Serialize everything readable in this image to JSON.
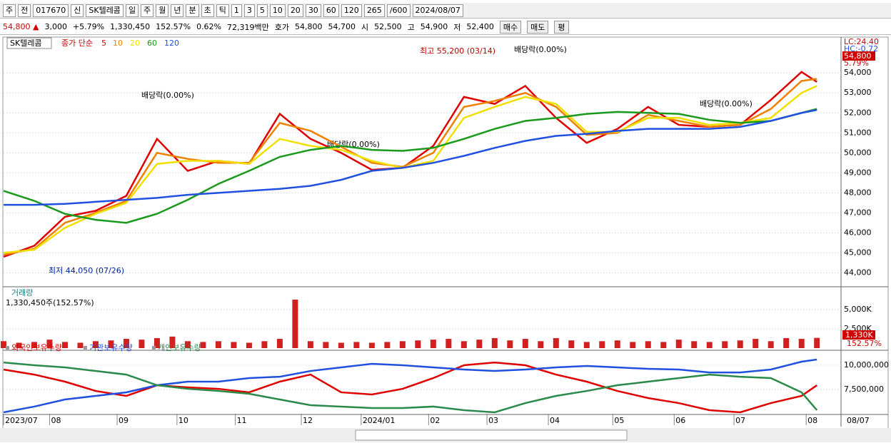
{
  "toolbar": {
    "items": [
      "주",
      "전",
      "017670",
      "신",
      "SK텔레콤",
      "일",
      "주",
      "월",
      "년",
      "분",
      "초",
      "틱",
      "1",
      "3",
      "5",
      "10",
      "20",
      "30",
      "60",
      "120",
      "265",
      "/600",
      "2024/08/07"
    ]
  },
  "info": {
    "items": [
      "54,800 ▲",
      "3,000",
      "+5.79%",
      "1,330,450",
      "152.57%",
      "0.62%",
      "72,319백만",
      "호가",
      "54,800",
      "54,700",
      "시",
      "52,500",
      "고",
      "54,900",
      "저",
      "52,400"
    ],
    "buttons": [
      "매수",
      "매도",
      "평"
    ]
  },
  "chart_data": [
    {
      "type": "line",
      "name": "SK텔레콤",
      "legend_title": "종가 단순",
      "x": [
        0,
        2,
        4,
        6,
        8,
        10,
        12,
        14,
        16,
        18,
        20,
        22,
        24,
        26,
        28,
        30,
        32,
        34,
        36,
        38,
        40,
        42,
        44,
        46,
        48,
        50,
        52,
        53
      ],
      "xlim": [
        0,
        54.2
      ],
      "ylim": [
        43300,
        55650
      ],
      "yticks": [
        {
          "value": 44000,
          "label": "44,000"
        },
        {
          "value": 45000,
          "label": "45,000"
        },
        {
          "value": 46000,
          "label": "46,000"
        },
        {
          "value": 47000,
          "label": "47,000"
        },
        {
          "value": 48000,
          "label": "48,000"
        },
        {
          "value": 49000,
          "label": "49,000"
        },
        {
          "value": 50000,
          "label": "50,000"
        },
        {
          "value": 51000,
          "label": "51,000"
        },
        {
          "value": 52000,
          "label": "52,000"
        },
        {
          "value": 53000,
          "label": "53,000"
        },
        {
          "value": 54000,
          "label": "54,000"
        }
      ],
      "grid": true,
      "series": [
        {
          "name": "5",
          "color": "#e00000",
          "values": [
            44800,
            45350,
            46800,
            47100,
            47850,
            50700,
            49100,
            49600,
            49450,
            51950,
            50700,
            50000,
            49150,
            49250,
            50350,
            52800,
            52450,
            53350,
            51750,
            50500,
            51200,
            52300,
            51400,
            51300,
            51400,
            52650,
            54050,
            53550
          ]
        },
        {
          "name": "10",
          "color": "#f08000",
          "values": [
            44900,
            45200,
            46500,
            47000,
            47600,
            50000,
            49700,
            49500,
            49500,
            51500,
            51100,
            50300,
            49500,
            49300,
            50000,
            52300,
            52600,
            53000,
            52300,
            50900,
            51000,
            51900,
            51600,
            51300,
            51400,
            52200,
            53600,
            53700
          ]
        },
        {
          "name": "20",
          "color": "#f0e000",
          "values": [
            45000,
            45150,
            46250,
            46950,
            47500,
            49450,
            49600,
            49600,
            49450,
            50700,
            50350,
            50150,
            49600,
            49250,
            49600,
            51750,
            52300,
            52800,
            52450,
            51050,
            51050,
            51750,
            51750,
            51400,
            51500,
            51750,
            53000,
            53350
          ]
        },
        {
          "name": "60",
          "color": "#1a9a1a",
          "values": [
            48100,
            47600,
            46950,
            46650,
            46500,
            46950,
            47650,
            48450,
            49100,
            49800,
            50150,
            50350,
            50150,
            50100,
            50250,
            50700,
            51200,
            51600,
            51750,
            51950,
            52050,
            52000,
            51950,
            51650,
            51500,
            51600,
            52000,
            52200
          ]
        },
        {
          "name": "120",
          "color": "#2050e0",
          "values": [
            47400,
            47400,
            47450,
            47550,
            47650,
            47750,
            47900,
            48000,
            48100,
            48200,
            48350,
            48650,
            49100,
            49250,
            49500,
            49850,
            50250,
            50600,
            50850,
            50950,
            51100,
            51200,
            51200,
            51200,
            51300,
            51600,
            52000,
            52150
          ]
        }
      ],
      "annotations": [
        "최고 55,200 (03/14)",
        "최저 44,050 (07/26)",
        "배당락(0.00%)",
        "배당락(0.00%)",
        "배당락(0.00%)",
        "배당락(0.00%)"
      ],
      "side_labels": [
        "LC:24.40",
        "HC:-0.72",
        "54,800",
        "5.79%"
      ]
    },
    {
      "type": "bar",
      "name": "거래량",
      "subtitle": "1,330,450주(152.57%)",
      "color": "#d02020",
      "x": [
        0,
        1,
        2,
        3,
        4,
        5,
        6,
        7,
        8,
        9,
        10,
        11,
        12,
        13,
        14,
        15,
        16,
        17,
        18,
        19,
        20,
        21,
        22,
        23,
        24,
        25,
        26,
        27,
        28,
        29,
        30,
        31,
        32,
        33,
        34,
        35,
        36,
        37,
        38,
        39,
        40,
        41,
        42,
        43,
        44,
        45,
        46,
        47,
        48,
        49,
        50,
        51,
        52,
        53
      ],
      "values": [
        900000,
        700000,
        800000,
        1100000,
        800000,
        700000,
        900000,
        1000000,
        1200000,
        1100000,
        1300000,
        1500000,
        900000,
        800000,
        900000,
        800000,
        700000,
        900000,
        1200000,
        6300000,
        900000,
        800000,
        700000,
        800000,
        700000,
        800000,
        900000,
        1000000,
        1100000,
        1200000,
        900000,
        1100000,
        1300000,
        1000000,
        1200000,
        900000,
        1300000,
        1000000,
        800000,
        900000,
        1000000,
        800000,
        900000,
        800000,
        1100000,
        900000,
        800000,
        900000,
        1000000,
        1200000,
        900000,
        1300000,
        1200000,
        1330450
      ],
      "xlim": [
        0,
        54.2
      ],
      "ylim": [
        0,
        7600000
      ],
      "yticks": [
        {
          "value": 5000000,
          "label": "5,000K"
        },
        {
          "value": 2500000,
          "label": "2,500K"
        }
      ],
      "side_labels": [
        "1,330K",
        "152.57%"
      ]
    },
    {
      "type": "line",
      "x": [
        0,
        2,
        4,
        6,
        8,
        10,
        12,
        14,
        16,
        18,
        20,
        22,
        24,
        26,
        28,
        30,
        32,
        34,
        36,
        38,
        40,
        42,
        44,
        46,
        48,
        50,
        52,
        53
      ],
      "xlim": [
        0,
        54.2
      ],
      "ylim": [
        5000000,
        11400000
      ],
      "yticks": [
        {
          "value": 10000000,
          "label": "10,000,000"
        },
        {
          "value": 7500000,
          "label": "7,500,000"
        }
      ],
      "xticks": [
        {
          "value": 0,
          "label": "2023/07"
        },
        {
          "value": 3,
          "label": "08"
        },
        {
          "value": 7.4,
          "label": "09"
        },
        {
          "value": 11.3,
          "label": "10"
        },
        {
          "value": 15.1,
          "label": "11"
        },
        {
          "value": 19.4,
          "label": "12"
        },
        {
          "value": 23.3,
          "label": "2024/01"
        },
        {
          "value": 27.7,
          "label": "02"
        },
        {
          "value": 31.5,
          "label": "03"
        },
        {
          "value": 35.5,
          "label": "04"
        },
        {
          "value": 39.7,
          "label": "05"
        },
        {
          "value": 43.7,
          "label": "06"
        },
        {
          "value": 47.6,
          "label": "07"
        },
        {
          "value": 52.3,
          "label": "08"
        }
      ],
      "x_end_label": "08/07",
      "series": [
        {
          "name": "외국인보유수량",
          "color": "#e00000",
          "values": [
            9560000,
            9040000,
            8310000,
            7350000,
            6840000,
            7940000,
            7720000,
            7570000,
            7210000,
            8310000,
            9040000,
            7210000,
            6990000,
            7570000,
            8680000,
            10000000,
            10290000,
            10000000,
            9040000,
            8310000,
            7350000,
            6620000,
            6100000,
            5370000,
            5150000,
            6100000,
            6840000,
            7940000
          ]
        },
        {
          "name": "기관보유수량",
          "color": "#2050e0",
          "values": [
            5150000,
            5740000,
            6470000,
            6840000,
            7210000,
            7940000,
            8310000,
            8310000,
            8680000,
            8820000,
            9410000,
            9780000,
            10150000,
            10000000,
            9780000,
            9560000,
            9410000,
            9560000,
            9780000,
            9930000,
            9780000,
            9630000,
            9560000,
            9260000,
            9260000,
            9560000,
            10370000,
            10590000
          ]
        },
        {
          "name": "개인보유수량",
          "color": "#2a8a4a",
          "values": [
            10290000,
            10000000,
            9780000,
            9410000,
            9040000,
            7940000,
            7570000,
            7350000,
            7060000,
            6470000,
            5880000,
            5740000,
            5590000,
            5590000,
            5740000,
            5370000,
            5150000,
            6100000,
            6840000,
            7350000,
            7940000,
            8310000,
            8680000,
            9040000,
            8820000,
            8680000,
            7210000,
            5370000
          ]
        }
      ]
    }
  ]
}
